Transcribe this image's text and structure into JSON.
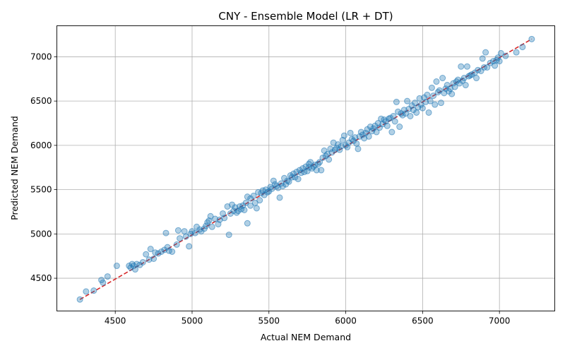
{
  "chart_data": {
    "type": "scatter",
    "title": "CNY - Ensemble Model (LR + DT)",
    "xlabel": "Actual NEM Demand",
    "ylabel": "Predicted NEM Demand",
    "xlim": [
      4120,
      7360
    ],
    "ylim": [
      4130,
      7350
    ],
    "xticks": [
      4500,
      5000,
      5500,
      6000,
      6500,
      7000
    ],
    "yticks": [
      4500,
      5000,
      5500,
      6000,
      6500,
      7000
    ],
    "grid": true,
    "colors": {
      "points": "#1f77b4",
      "reference_line": "#d62728"
    },
    "reference_line": {
      "x": [
        4270,
        7210
      ],
      "y": [
        4260,
        7200
      ]
    },
    "series": [
      {
        "points": [
          [
            4270,
            4260
          ],
          [
            4310,
            4350
          ],
          [
            4360,
            4360
          ],
          [
            4410,
            4480
          ],
          [
            4420,
            4450
          ],
          [
            4450,
            4520
          ],
          [
            4510,
            4640
          ],
          [
            4590,
            4640
          ],
          [
            4600,
            4620
          ],
          [
            4610,
            4660
          ],
          [
            4620,
            4640
          ],
          [
            4630,
            4600
          ],
          [
            4640,
            4660
          ],
          [
            4660,
            4650
          ],
          [
            4680,
            4680
          ],
          [
            4700,
            4770
          ],
          [
            4720,
            4710
          ],
          [
            4730,
            4830
          ],
          [
            4750,
            4720
          ],
          [
            4760,
            4790
          ],
          [
            4780,
            4780
          ],
          [
            4800,
            4800
          ],
          [
            4820,
            4820
          ],
          [
            4830,
            5010
          ],
          [
            4840,
            4850
          ],
          [
            4850,
            4810
          ],
          [
            4870,
            4800
          ],
          [
            4900,
            4880
          ],
          [
            4910,
            5040
          ],
          [
            4920,
            4950
          ],
          [
            4950,
            5030
          ],
          [
            4960,
            4970
          ],
          [
            4980,
            4860
          ],
          [
            4990,
            5000
          ],
          [
            5000,
            5030
          ],
          [
            5020,
            5010
          ],
          [
            5030,
            5080
          ],
          [
            5050,
            5050
          ],
          [
            5060,
            5030
          ],
          [
            5080,
            5060
          ],
          [
            5090,
            5090
          ],
          [
            5100,
            5130
          ],
          [
            5110,
            5150
          ],
          [
            5120,
            5200
          ],
          [
            5130,
            5080
          ],
          [
            5150,
            5170
          ],
          [
            5170,
            5110
          ],
          [
            5180,
            5160
          ],
          [
            5200,
            5230
          ],
          [
            5210,
            5180
          ],
          [
            5230,
            5310
          ],
          [
            5240,
            4990
          ],
          [
            5250,
            5230
          ],
          [
            5260,
            5330
          ],
          [
            5270,
            5260
          ],
          [
            5280,
            5300
          ],
          [
            5290,
            5240
          ],
          [
            5300,
            5260
          ],
          [
            5310,
            5310
          ],
          [
            5320,
            5280
          ],
          [
            5330,
            5320
          ],
          [
            5340,
            5270
          ],
          [
            5350,
            5350
          ],
          [
            5360,
            5120
          ],
          [
            5360,
            5420
          ],
          [
            5380,
            5400
          ],
          [
            5380,
            5320
          ],
          [
            5400,
            5430
          ],
          [
            5410,
            5350
          ],
          [
            5420,
            5290
          ],
          [
            5430,
            5470
          ],
          [
            5440,
            5380
          ],
          [
            5450,
            5460
          ],
          [
            5460,
            5490
          ],
          [
            5470,
            5440
          ],
          [
            5480,
            5500
          ],
          [
            5490,
            5470
          ],
          [
            5500,
            5480
          ],
          [
            5510,
            5530
          ],
          [
            5520,
            5510
          ],
          [
            5530,
            5600
          ],
          [
            5540,
            5560
          ],
          [
            5550,
            5540
          ],
          [
            5560,
            5520
          ],
          [
            5570,
            5410
          ],
          [
            5580,
            5570
          ],
          [
            5590,
            5540
          ],
          [
            5600,
            5630
          ],
          [
            5610,
            5560
          ],
          [
            5620,
            5600
          ],
          [
            5630,
            5590
          ],
          [
            5640,
            5660
          ],
          [
            5650,
            5640
          ],
          [
            5660,
            5680
          ],
          [
            5670,
            5640
          ],
          [
            5680,
            5700
          ],
          [
            5690,
            5620
          ],
          [
            5700,
            5720
          ],
          [
            5710,
            5690
          ],
          [
            5720,
            5740
          ],
          [
            5730,
            5700
          ],
          [
            5740,
            5760
          ],
          [
            5750,
            5710
          ],
          [
            5760,
            5790
          ],
          [
            5760,
            5750
          ],
          [
            5770,
            5810
          ],
          [
            5780,
            5740
          ],
          [
            5790,
            5760
          ],
          [
            5800,
            5780
          ],
          [
            5810,
            5720
          ],
          [
            5820,
            5790
          ],
          [
            5830,
            5810
          ],
          [
            5840,
            5720
          ],
          [
            5850,
            5860
          ],
          [
            5860,
            5940
          ],
          [
            5870,
            5880
          ],
          [
            5880,
            5900
          ],
          [
            5890,
            5840
          ],
          [
            5900,
            5960
          ],
          [
            5910,
            5920
          ],
          [
            5920,
            6030
          ],
          [
            5930,
            5950
          ],
          [
            5940,
            5970
          ],
          [
            5950,
            6010
          ],
          [
            5960,
            5950
          ],
          [
            5970,
            5990
          ],
          [
            5980,
            6060
          ],
          [
            5990,
            6110
          ],
          [
            6000,
            6000
          ],
          [
            6010,
            5980
          ],
          [
            6020,
            6030
          ],
          [
            6030,
            6140
          ],
          [
            6040,
            6070
          ],
          [
            6050,
            6050
          ],
          [
            6060,
            6090
          ],
          [
            6070,
            6020
          ],
          [
            6080,
            5960
          ],
          [
            6090,
            6100
          ],
          [
            6100,
            6150
          ],
          [
            6110,
            6120
          ],
          [
            6120,
            6080
          ],
          [
            6130,
            6140
          ],
          [
            6140,
            6180
          ],
          [
            6150,
            6100
          ],
          [
            6160,
            6210
          ],
          [
            6170,
            6160
          ],
          [
            6180,
            6190
          ],
          [
            6190,
            6220
          ],
          [
            6200,
            6150
          ],
          [
            6210,
            6250
          ],
          [
            6220,
            6200
          ],
          [
            6230,
            6300
          ],
          [
            6240,
            6240
          ],
          [
            6250,
            6290
          ],
          [
            6260,
            6270
          ],
          [
            6270,
            6220
          ],
          [
            6280,
            6300
          ],
          [
            6290,
            6310
          ],
          [
            6300,
            6150
          ],
          [
            6310,
            6330
          ],
          [
            6320,
            6270
          ],
          [
            6330,
            6490
          ],
          [
            6340,
            6380
          ],
          [
            6350,
            6210
          ],
          [
            6360,
            6360
          ],
          [
            6370,
            6340
          ],
          [
            6380,
            6400
          ],
          [
            6390,
            6360
          ],
          [
            6400,
            6500
          ],
          [
            6410,
            6410
          ],
          [
            6420,
            6330
          ],
          [
            6430,
            6450
          ],
          [
            6440,
            6400
          ],
          [
            6450,
            6480
          ],
          [
            6460,
            6370
          ],
          [
            6470,
            6430
          ],
          [
            6480,
            6530
          ],
          [
            6490,
            6460
          ],
          [
            6500,
            6420
          ],
          [
            6510,
            6540
          ],
          [
            6520,
            6490
          ],
          [
            6530,
            6570
          ],
          [
            6540,
            6370
          ],
          [
            6550,
            6500
          ],
          [
            6560,
            6650
          ],
          [
            6570,
            6560
          ],
          [
            6580,
            6460
          ],
          [
            6590,
            6720
          ],
          [
            6600,
            6600
          ],
          [
            6610,
            6620
          ],
          [
            6620,
            6480
          ],
          [
            6630,
            6760
          ],
          [
            6640,
            6590
          ],
          [
            6650,
            6640
          ],
          [
            6660,
            6680
          ],
          [
            6670,
            6610
          ],
          [
            6680,
            6640
          ],
          [
            6690,
            6580
          ],
          [
            6700,
            6700
          ],
          [
            6710,
            6660
          ],
          [
            6720,
            6720
          ],
          [
            6730,
            6740
          ],
          [
            6740,
            6700
          ],
          [
            6750,
            6890
          ],
          [
            6760,
            6730
          ],
          [
            6770,
            6760
          ],
          [
            6780,
            6680
          ],
          [
            6790,
            6890
          ],
          [
            6800,
            6780
          ],
          [
            6810,
            6790
          ],
          [
            6820,
            6800
          ],
          [
            6840,
            6820
          ],
          [
            6850,
            6760
          ],
          [
            6860,
            6850
          ],
          [
            6880,
            6840
          ],
          [
            6890,
            6980
          ],
          [
            6900,
            6880
          ],
          [
            6910,
            7050
          ],
          [
            6920,
            6880
          ],
          [
            6940,
            6930
          ],
          [
            6960,
            6950
          ],
          [
            6970,
            6900
          ],
          [
            6980,
            6960
          ],
          [
            6990,
            6990
          ],
          [
            7000,
            6950
          ],
          [
            7010,
            7040
          ],
          [
            7040,
            7010
          ],
          [
            7110,
            7050
          ],
          [
            7150,
            7110
          ],
          [
            7210,
            7200
          ]
        ]
      }
    ]
  }
}
